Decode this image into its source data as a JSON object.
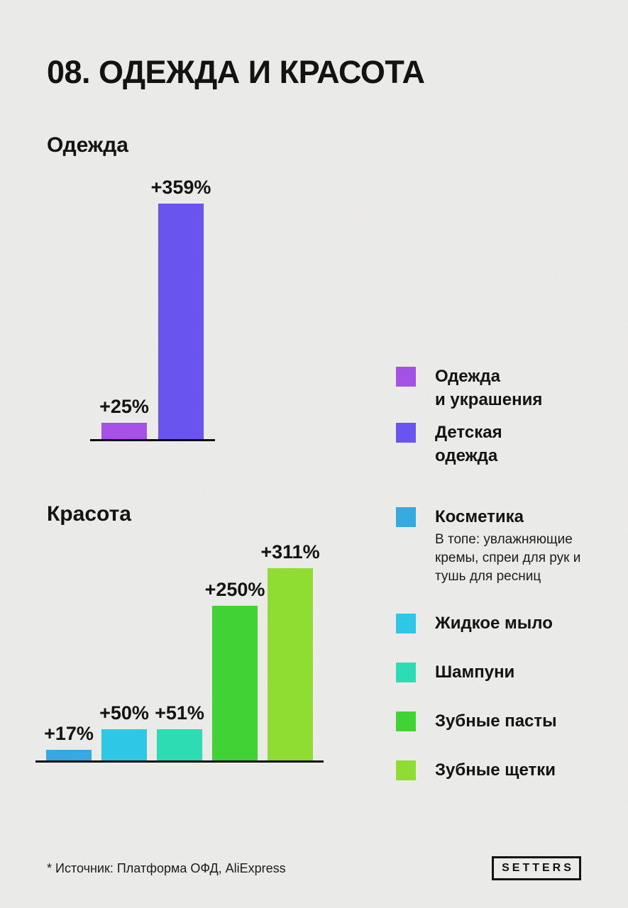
{
  "page": {
    "title": "08. ОДЕЖДА И КРАСОТА",
    "background_color": "#ECECEA",
    "text_color": "#131313"
  },
  "chart_data": [
    {
      "type": "bar",
      "title": "Одежда",
      "categories": [
        "Одежда и украшения",
        "Детская одежда"
      ],
      "values": [
        25,
        359
      ],
      "data_labels": [
        "+25%",
        "+359%"
      ],
      "colors": [
        "#A551E6",
        "#6A54EF"
      ],
      "ylabel": "",
      "xlabel": "",
      "ylim": [
        0,
        359
      ],
      "grid": false,
      "legend_position": "right",
      "legend": [
        {
          "label": "Одежда\nи украшения",
          "color": "#A551E6"
        },
        {
          "label": "Детская\nодежда",
          "color": "#6A54EF"
        }
      ]
    },
    {
      "type": "bar",
      "title": "Красота",
      "categories": [
        "Косметика",
        "Жидкое мыло",
        "Шампуни",
        "Зубные пасты",
        "Зубные щетки"
      ],
      "values": [
        17,
        50,
        51,
        250,
        311
      ],
      "data_labels": [
        "+17%",
        "+50%",
        "+51%",
        "+250%",
        "+311%"
      ],
      "colors": [
        "#36A9E1",
        "#2EC7E6",
        "#2EDCB4",
        "#41D235",
        "#8FDC33"
      ],
      "ylabel": "",
      "xlabel": "",
      "ylim": [
        0,
        311
      ],
      "grid": false,
      "legend_position": "right",
      "legend": [
        {
          "label": "Косметика",
          "color": "#36A9E1",
          "description": "В топе: увлажняющие кремы, спреи для рук и тушь для ресниц"
        },
        {
          "label": "Жидкое мыло",
          "color": "#2EC7E6"
        },
        {
          "label": "Шампуни",
          "color": "#2EDCB4"
        },
        {
          "label": "Зубные пасты",
          "color": "#41D235"
        },
        {
          "label": "Зубные щетки",
          "color": "#8FDC33"
        }
      ]
    }
  ],
  "footer": {
    "source_note": "* Источник: Платформа ОФД, AliExpress",
    "logo_text": "SETTERS"
  }
}
